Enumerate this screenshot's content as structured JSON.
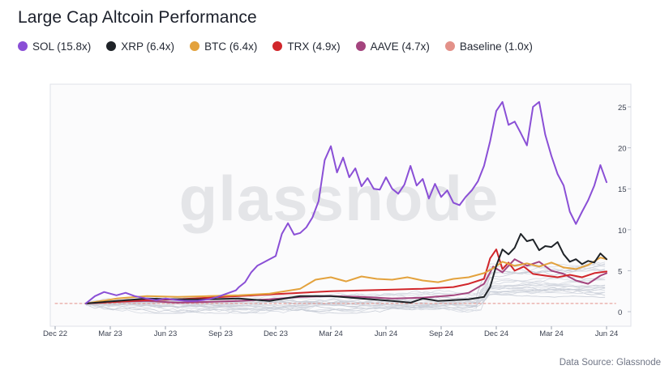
{
  "title": "Large Cap Altcoin Performance",
  "source": "Data Source: Glassnode",
  "watermark": "glassnode",
  "legend": [
    {
      "label": "SOL (15.8x)",
      "color": "#8a4fd6"
    },
    {
      "label": "XRP (6.4x)",
      "color": "#1f2328"
    },
    {
      "label": "BTC (6.4x)",
      "color": "#e3a23d"
    },
    {
      "label": "TRX (4.9x)",
      "color": "#d1262b"
    },
    {
      "label": "AAVE (4.7x)",
      "color": "#a4447e"
    },
    {
      "label": "Baseline (1.0x)",
      "color": "#e39189"
    }
  ],
  "chart_data": {
    "type": "line",
    "title": "Large Cap Altcoin Performance",
    "xlabel": "",
    "ylabel": "",
    "x_ticks": [
      "Dec 22",
      "Mar 23",
      "Jun 23",
      "Sep 23",
      "Dec 23",
      "Mar 24",
      "Jun 24",
      "Sep 24",
      "Dec 24",
      "Mar 24",
      "Jun 24"
    ],
    "x_range_months": [
      0,
      18
    ],
    "y_ticks": [
      0,
      5,
      10,
      15,
      20,
      25
    ],
    "ylim": [
      -2,
      28
    ],
    "y_axis_side": "right",
    "baseline": 1.0,
    "series": [
      {
        "name": "SOL (15.8x)",
        "color": "#8a4fd6",
        "x": [
          1,
          1.3,
          1.6,
          2.0,
          2.3,
          2.6,
          3.0,
          3.3,
          3.6,
          4.0,
          4.3,
          4.6,
          5.0,
          5.3,
          5.6,
          5.9,
          6.0,
          6.2,
          6.4,
          6.6,
          6.8,
          7.0,
          7.2,
          7.4,
          7.6,
          7.8,
          8.0,
          8.2,
          8.4,
          8.6,
          8.8,
          9.0,
          9.2,
          9.4,
          9.6,
          9.8,
          10.0,
          10.2,
          10.4,
          10.6,
          10.8,
          11.0,
          11.2,
          11.4,
          11.6,
          11.8,
          12.0,
          12.2,
          12.4,
          12.6,
          12.8,
          13.0,
          13.2,
          13.4,
          13.6,
          13.8,
          14.0,
          14.2,
          14.4,
          14.6,
          14.8,
          15.0,
          15.2,
          15.4,
          15.6,
          15.8,
          16.0,
          16.2,
          16.4,
          16.6,
          16.8,
          17.0,
          17.2,
          17.4,
          17.6,
          17.8,
          18.0
        ],
        "values": [
          1.0,
          1.9,
          2.4,
          2.0,
          2.3,
          1.9,
          1.6,
          1.4,
          1.6,
          1.4,
          1.3,
          1.3,
          1.5,
          1.8,
          2.2,
          2.6,
          3.0,
          3.6,
          4.8,
          5.6,
          6.0,
          6.4,
          6.8,
          9.5,
          10.8,
          9.4,
          9.6,
          10.3,
          11.5,
          13.5,
          18.5,
          20.2,
          17.0,
          18.8,
          16.4,
          17.5,
          15.3,
          16.3,
          15.0,
          14.9,
          16.4,
          15.0,
          14.4,
          15.5,
          17.8,
          15.4,
          16.2,
          13.8,
          15.6,
          14.0,
          14.8,
          13.3,
          13.0,
          14.0,
          14.8,
          15.9,
          17.8,
          20.8,
          24.5,
          25.6,
          22.8,
          23.2,
          21.8,
          20.3,
          25.0,
          25.6,
          21.6,
          19.0,
          16.8,
          15.4,
          12.2,
          10.7,
          12.2,
          13.6,
          15.4,
          17.9,
          15.8
        ]
      },
      {
        "name": "XRP (6.4x)",
        "color": "#1f2328",
        "x": [
          1,
          2,
          3,
          4,
          5,
          6,
          7,
          8,
          9,
          10,
          11,
          11.6,
          12,
          12.5,
          13,
          13.5,
          14,
          14.2,
          14.4,
          14.6,
          14.8,
          15.0,
          15.2,
          15.4,
          15.6,
          15.8,
          16.0,
          16.2,
          16.4,
          16.6,
          16.8,
          17.0,
          17.2,
          17.4,
          17.6,
          17.8,
          18.0
        ],
        "values": [
          1.0,
          1.3,
          1.6,
          1.5,
          1.5,
          1.6,
          1.3,
          1.9,
          1.9,
          1.6,
          1.3,
          1.1,
          1.6,
          1.3,
          1.4,
          1.5,
          1.8,
          3.0,
          5.6,
          7.6,
          7.0,
          7.8,
          9.5,
          8.6,
          8.8,
          7.5,
          8.0,
          7.9,
          8.5,
          7.0,
          6.1,
          6.4,
          5.8,
          6.2,
          6.0,
          7.1,
          6.4
        ]
      },
      {
        "name": "BTC (6.4x)",
        "color": "#e3a23d",
        "x": [
          1,
          2,
          3,
          4,
          5,
          6,
          7,
          8,
          8.5,
          9,
          9.5,
          10,
          10.5,
          11,
          11.5,
          12,
          12.5,
          13,
          13.5,
          14,
          14.3,
          14.6,
          15.0,
          15.4,
          15.8,
          16.2,
          16.6,
          17.0,
          17.4,
          17.8,
          18.0
        ],
        "values": [
          1.0,
          1.6,
          1.9,
          1.8,
          1.9,
          2.0,
          2.2,
          2.8,
          3.9,
          4.2,
          3.7,
          4.3,
          4.0,
          3.9,
          4.2,
          3.8,
          3.6,
          4.0,
          4.2,
          4.7,
          5.3,
          6.1,
          5.6,
          5.9,
          5.5,
          6.0,
          5.4,
          5.2,
          5.7,
          6.6,
          6.4
        ]
      },
      {
        "name": "TRX (4.9x)",
        "color": "#d1262b",
        "x": [
          1,
          2,
          3,
          4,
          5,
          6,
          7,
          8,
          9,
          10,
          11,
          12,
          13,
          13.5,
          14,
          14.2,
          14.4,
          14.6,
          14.8,
          15.0,
          15.3,
          15.6,
          16.0,
          16.4,
          16.8,
          17.2,
          17.6,
          18.0
        ],
        "values": [
          1.0,
          1.2,
          1.4,
          1.5,
          1.7,
          1.9,
          2.1,
          2.3,
          2.5,
          2.6,
          2.7,
          2.8,
          3.0,
          3.4,
          4.0,
          6.5,
          7.6,
          5.2,
          6.0,
          5.0,
          5.5,
          4.6,
          4.4,
          4.2,
          4.5,
          4.2,
          4.7,
          4.9
        ]
      },
      {
        "name": "AAVE (4.7x)",
        "color": "#a4447e",
        "x": [
          1,
          2,
          3,
          4,
          5,
          6,
          7,
          8,
          9,
          10,
          11,
          12,
          13,
          13.5,
          14,
          14.3,
          14.6,
          15.0,
          15.4,
          15.8,
          16.2,
          16.6,
          17.0,
          17.4,
          17.8,
          18.0
        ],
        "values": [
          1.0,
          1.2,
          1.3,
          1.1,
          1.2,
          1.3,
          1.5,
          1.8,
          1.9,
          1.8,
          1.6,
          1.7,
          2.0,
          2.3,
          3.4,
          5.5,
          4.8,
          6.4,
          5.6,
          6.1,
          5.0,
          4.6,
          3.8,
          3.4,
          4.4,
          4.7
        ]
      },
      {
        "name": "Baseline (1.0x)",
        "color": "#e39189",
        "x": [
          0,
          18.3
        ],
        "values": [
          1.0,
          1.0
        ],
        "dashed": true
      }
    ]
  }
}
